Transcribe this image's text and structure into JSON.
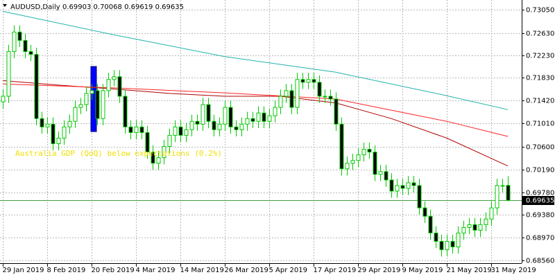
{
  "chart_data": {
    "type": "candlestick",
    "title": "AUDUSD,Daily",
    "subtitle": "0.69903 0.70068 0.69619 0.69635",
    "annotation": "Australia GDP (QoQ) below expectations (0.2%)",
    "xlim": [
      -0.5,
      93.5
    ],
    "xticks": [
      {
        "value": 0,
        "label": "29 Jan 2019"
      },
      {
        "value": 8,
        "label": "8 Feb 2019"
      },
      {
        "value": 16,
        "label": "20 Feb 2019"
      },
      {
        "value": 24,
        "label": "4 Mar 2019"
      },
      {
        "value": 32,
        "label": "14 Mar 2019"
      },
      {
        "value": 40,
        "label": "26 Mar 2019"
      },
      {
        "value": 48,
        "label": "5 Apr 2019"
      },
      {
        "value": 56,
        "label": "17 Apr 2019"
      },
      {
        "value": 64,
        "label": "29 Apr 2019"
      },
      {
        "value": 72,
        "label": "9 May 2019"
      },
      {
        "value": 80,
        "label": "21 May 2019"
      },
      {
        "value": 88,
        "label": "31 May 2019"
      }
    ],
    "ylim": [
      0.6851,
      0.73224
    ],
    "yticks": [
      {
        "value": 0.7305,
        "label": "0.73050"
      },
      {
        "value": 0.7263,
        "label": "0.72630"
      },
      {
        "value": 0.7223,
        "label": "0.72230"
      },
      {
        "value": 0.7183,
        "label": "0.71830"
      },
      {
        "value": 0.7142,
        "label": "0.71420"
      },
      {
        "value": 0.7101,
        "label": "0.71010"
      },
      {
        "value": 0.706,
        "label": "0.70600"
      },
      {
        "value": 0.7019,
        "label": "0.70190"
      },
      {
        "value": 0.6978,
        "label": "0.69780"
      },
      {
        "value": 0.6938,
        "label": "0.69380"
      },
      {
        "value": 0.6897,
        "label": "0.68970"
      },
      {
        "value": 0.6856,
        "label": "0.68560"
      }
    ],
    "grid": true,
    "up_color": "#ffffff",
    "down_color": "#000000",
    "outline_color": "#00c800",
    "current_price": {
      "value": 0.69635,
      "label": "0.69635",
      "color": "#40a040"
    },
    "x": [
      0,
      1,
      2,
      3,
      4,
      5,
      6,
      7,
      8,
      9,
      10,
      11,
      12,
      13,
      14,
      15,
      16,
      17,
      18,
      19,
      20,
      21,
      22,
      23,
      24,
      25,
      26,
      27,
      28,
      29,
      30,
      31,
      32,
      33,
      34,
      35,
      36,
      37,
      38,
      39,
      40,
      41,
      42,
      43,
      44,
      45,
      46,
      47,
      48,
      49,
      50,
      51,
      52,
      53,
      54,
      55,
      56,
      57,
      58,
      59,
      60,
      61,
      62,
      63,
      64,
      65,
      66,
      67,
      68,
      69,
      70,
      71,
      72,
      73,
      74,
      75,
      76,
      77,
      78,
      79,
      80,
      81,
      82,
      83,
      84,
      85,
      86,
      87,
      88,
      89,
      90,
      91
    ],
    "open": [
      0.714,
      0.715,
      0.723,
      0.7265,
      0.725,
      0.723,
      0.7225,
      0.711,
      0.7095,
      0.71,
      0.7065,
      0.7075,
      0.7095,
      0.7105,
      0.713,
      0.7135,
      0.7155,
      0.716,
      0.711,
      0.716,
      0.718,
      0.7185,
      0.715,
      0.7095,
      0.7085,
      0.7095,
      0.7085,
      0.705,
      0.703,
      0.704,
      0.706,
      0.708,
      0.7095,
      0.708,
      0.709,
      0.7105,
      0.71,
      0.7135,
      0.7105,
      0.709,
      0.71,
      0.713,
      0.7095,
      0.709,
      0.71,
      0.711,
      0.7105,
      0.712,
      0.7105,
      0.7115,
      0.713,
      0.715,
      0.716,
      0.713,
      0.718,
      0.7175,
      0.718,
      0.7175,
      0.715,
      0.715,
      0.7145,
      0.71,
      0.702,
      0.703,
      0.7035,
      0.7045,
      0.7055,
      0.705,
      0.701,
      0.7015,
      0.7,
      0.698,
      0.699,
      0.6985,
      0.6995,
      0.699,
      0.695,
      0.6935,
      0.6905,
      0.689,
      0.6875,
      0.689,
      0.688,
      0.6905,
      0.6915,
      0.692,
      0.691,
      0.692,
      0.693,
      0.695,
      0.699,
      0.69903
    ],
    "high": [
      0.7162,
      0.7242,
      0.7277,
      0.7277,
      0.7262,
      0.7242,
      0.7237,
      0.7122,
      0.7112,
      0.7112,
      0.7087,
      0.7107,
      0.7117,
      0.7142,
      0.7147,
      0.7167,
      0.7172,
      0.7172,
      0.7172,
      0.7192,
      0.7197,
      0.7197,
      0.7162,
      0.7107,
      0.7107,
      0.7107,
      0.7097,
      0.7062,
      0.7052,
      0.7072,
      0.7092,
      0.7107,
      0.7107,
      0.7102,
      0.7117,
      0.7117,
      0.7147,
      0.7147,
      0.7117,
      0.7112,
      0.7142,
      0.7142,
      0.7107,
      0.7112,
      0.7122,
      0.7122,
      0.7132,
      0.7132,
      0.7127,
      0.7142,
      0.7162,
      0.7172,
      0.7172,
      0.7192,
      0.7192,
      0.7192,
      0.7192,
      0.7187,
      0.7162,
      0.7162,
      0.7157,
      0.7112,
      0.7042,
      0.7047,
      0.7057,
      0.7067,
      0.7067,
      0.7062,
      0.7027,
      0.7027,
      0.7012,
      0.7002,
      0.7002,
      0.7007,
      0.7007,
      0.7002,
      0.6962,
      0.6947,
      0.6917,
      0.6902,
      0.6902,
      0.6902,
      0.6917,
      0.6927,
      0.6932,
      0.6932,
      0.6932,
      0.6942,
      0.6962,
      0.7002,
      0.7002,
      0.70068
    ],
    "low": [
      0.7128,
      0.7138,
      0.7218,
      0.7238,
      0.7218,
      0.7213,
      0.7098,
      0.7083,
      0.7083,
      0.7053,
      0.7053,
      0.7063,
      0.7083,
      0.7093,
      0.7118,
      0.7123,
      0.7143,
      0.7098,
      0.7098,
      0.7148,
      0.7168,
      0.7138,
      0.7083,
      0.7073,
      0.7073,
      0.7073,
      0.7038,
      0.7018,
      0.7018,
      0.7028,
      0.7048,
      0.7068,
      0.7068,
      0.7068,
      0.7078,
      0.7088,
      0.7088,
      0.7093,
      0.7078,
      0.7078,
      0.7088,
      0.7083,
      0.7078,
      0.7078,
      0.7088,
      0.7093,
      0.7093,
      0.7093,
      0.7093,
      0.7103,
      0.7118,
      0.7138,
      0.7118,
      0.7118,
      0.7163,
      0.7163,
      0.7163,
      0.7138,
      0.7138,
      0.7133,
      0.7088,
      0.7008,
      0.7008,
      0.7018,
      0.7023,
      0.7033,
      0.7038,
      0.6998,
      0.6998,
      0.6988,
      0.6968,
      0.6968,
      0.6973,
      0.6973,
      0.6978,
      0.6938,
      0.6923,
      0.6893,
      0.6878,
      0.6863,
      0.6863,
      0.6868,
      0.6868,
      0.6893,
      0.6903,
      0.6898,
      0.6898,
      0.6908,
      0.6918,
      0.6938,
      0.6978,
      0.69619
    ],
    "close": [
      0.715,
      0.723,
      0.7265,
      0.725,
      0.723,
      0.7225,
      0.711,
      0.7095,
      0.71,
      0.7065,
      0.7075,
      0.7095,
      0.7105,
      0.713,
      0.7135,
      0.7155,
      0.716,
      0.711,
      0.716,
      0.718,
      0.7185,
      0.715,
      0.7095,
      0.7085,
      0.7095,
      0.7085,
      0.705,
      0.703,
      0.704,
      0.706,
      0.708,
      0.7095,
      0.708,
      0.709,
      0.7105,
      0.71,
      0.7135,
      0.7105,
      0.709,
      0.71,
      0.713,
      0.7095,
      0.709,
      0.71,
      0.711,
      0.7105,
      0.712,
      0.7105,
      0.7115,
      0.713,
      0.715,
      0.716,
      0.713,
      0.718,
      0.7175,
      0.718,
      0.7175,
      0.715,
      0.715,
      0.7145,
      0.71,
      0.702,
      0.703,
      0.7035,
      0.7045,
      0.7055,
      0.705,
      0.701,
      0.7015,
      0.7,
      0.698,
      0.699,
      0.6985,
      0.6995,
      0.699,
      0.695,
      0.6935,
      0.6905,
      0.689,
      0.6875,
      0.689,
      0.688,
      0.6905,
      0.6915,
      0.692,
      0.691,
      0.692,
      0.693,
      0.695,
      0.699,
      0.699,
      0.69635
    ],
    "lines": [
      {
        "color": "#20b2aa",
        "x": [
          0,
          20,
          40,
          60,
          80,
          91
        ],
        "values": [
          0.7302,
          0.726,
          0.7221,
          0.7193,
          0.7151,
          0.7126
        ]
      },
      {
        "color": "#b00000",
        "x": [
          0,
          10,
          20,
          30,
          40,
          50,
          60,
          70,
          80,
          91
        ],
        "values": [
          0.7178,
          0.717,
          0.7163,
          0.7155,
          0.715,
          0.715,
          0.7138,
          0.711,
          0.7075,
          0.7025
        ]
      },
      {
        "color": "#ff2020",
        "x": [
          0,
          20,
          40,
          60,
          70,
          80,
          91
        ],
        "values": [
          0.7172,
          0.7165,
          0.7156,
          0.7145,
          0.7125,
          0.7105,
          0.7078
        ]
      }
    ]
  }
}
